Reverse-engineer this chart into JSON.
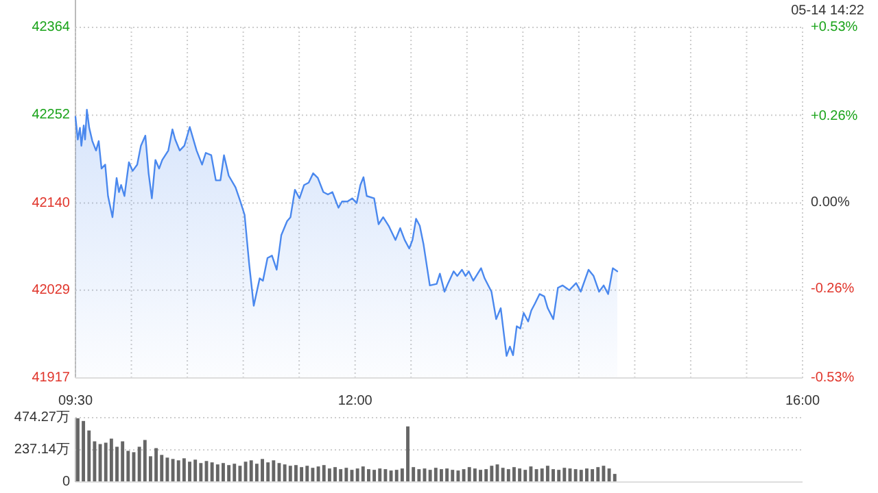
{
  "chart_data": [
    {
      "type": "area",
      "annotations": [
        "05-14 14:22"
      ],
      "grid": true,
      "x": [
        9.5,
        9.521,
        9.54,
        9.553,
        9.574,
        9.586,
        9.602,
        9.623,
        9.651,
        9.684,
        9.708,
        9.733,
        9.766,
        9.791,
        9.831,
        9.868,
        9.889,
        9.908,
        9.938,
        9.978,
        10.011,
        10.052,
        10.085,
        10.125,
        10.154,
        10.183,
        10.215,
        10.248,
        10.276,
        10.33,
        10.367,
        10.392,
        10.432,
        10.473,
        10.522,
        10.583,
        10.632,
        10.665,
        10.714,
        10.755,
        10.796,
        10.828,
        10.87,
        10.931,
        10.972,
        11.012,
        11.054,
        11.094,
        11.147,
        11.176,
        11.217,
        11.257,
        11.299,
        11.34,
        11.392,
        11.422,
        11.462,
        11.503,
        11.544,
        11.585,
        11.625,
        11.667,
        11.716,
        11.757,
        11.797,
        11.851,
        11.883,
        11.932,
        11.974,
        12.014,
        12.047,
        12.075,
        12.104,
        12.17,
        12.21,
        12.251,
        12.3,
        12.361,
        12.403,
        12.443,
        12.484,
        12.513,
        12.545,
        12.578,
        12.611,
        12.668,
        12.729,
        12.758,
        12.799,
        12.832,
        12.881,
        12.913,
        12.955,
        12.987,
        13.016,
        13.057,
        13.126,
        13.158,
        13.219,
        13.261,
        13.302,
        13.354,
        13.384,
        13.412,
        13.445,
        13.477,
        13.507,
        13.547,
        13.575,
        13.608,
        13.649,
        13.691,
        13.722,
        13.772,
        13.813,
        13.854,
        13.915,
        13.976,
        14.017,
        14.087,
        14.132,
        14.181,
        14.222,
        14.262,
        14.304,
        14.344
      ],
      "series": [
        {
          "color": "#4a88ee",
          "values": [
            42250,
            42221,
            42236,
            42213,
            42239,
            42221,
            42259,
            42236,
            42219,
            42207,
            42219,
            42184,
            42189,
            42149,
            42122,
            42172,
            42154,
            42163,
            42149,
            42192,
            42181,
            42189,
            42213,
            42226,
            42178,
            42146,
            42195,
            42184,
            42195,
            42207,
            42234,
            42221,
            42207,
            42213,
            42237,
            42207,
            42189,
            42204,
            42201,
            42169,
            42169,
            42201,
            42175,
            42160,
            42143,
            42125,
            42061,
            42009,
            42044,
            42041,
            42070,
            42073,
            42055,
            42099,
            42117,
            42122,
            42157,
            42146,
            42163,
            42166,
            42178,
            42172,
            42154,
            42151,
            42154,
            42134,
            42142,
            42142,
            42146,
            42140,
            42163,
            42173,
            42149,
            42146,
            42113,
            42122,
            42111,
            42093,
            42108,
            42093,
            42082,
            42093,
            42120,
            42111,
            42088,
            42035,
            42037,
            42050,
            42027,
            42038,
            42053,
            42047,
            42055,
            42047,
            42053,
            42041,
            42057,
            42044,
            42027,
            41992,
            42006,
            41945,
            41957,
            41946,
            41983,
            41980,
            42000,
            41989,
            42003,
            42012,
            42024,
            42021,
            42006,
            41992,
            42032,
            42035,
            42029,
            42038,
            42027,
            42055,
            42047,
            42027,
            42035,
            42024,
            42057,
            42053
          ]
        }
      ],
      "xlim": [
        9.5,
        16
      ],
      "xticks": [
        {
          "value": 9.5,
          "label": "09:30"
        },
        {
          "value": 10,
          "label": null
        },
        {
          "value": 10.5,
          "label": null
        },
        {
          "value": 11,
          "label": null
        },
        {
          "value": 11.5,
          "label": null
        },
        {
          "value": 12,
          "label": "12:00"
        },
        {
          "value": 12.5,
          "label": null
        },
        {
          "value": 13,
          "label": null
        },
        {
          "value": 13.5,
          "label": null
        },
        {
          "value": 14,
          "label": null
        },
        {
          "value": 14.5,
          "label": null
        },
        {
          "value": 15,
          "label": null
        },
        {
          "value": 15.5,
          "label": null
        },
        {
          "value": 16,
          "label": "16:00"
        }
      ],
      "ylim": [
        41917,
        42364
      ],
      "yticks": [
        41917,
        42029,
        42140,
        42252,
        42364
      ],
      "y2lim": [
        -0.53,
        0.53
      ],
      "y2ticks": [
        {
          "value": -0.53,
          "label": "-0.53%"
        },
        {
          "value": -0.26,
          "label": "-0.26%"
        },
        {
          "value": 0,
          "label": "0.00%"
        },
        {
          "value": 0.26,
          "label": "+0.26%"
        },
        {
          "value": 0.53,
          "label": "+0.53%"
        }
      ]
    },
    {
      "type": "bar",
      "color": "#666666",
      "grid": "y",
      "tick_labels": "y",
      "x": [
        9.5,
        9.55,
        9.6,
        9.65,
        9.7,
        9.75,
        9.8,
        9.85,
        9.9,
        9.95,
        10.0,
        10.05,
        10.1,
        10.15,
        10.2,
        10.25,
        10.3,
        10.35,
        10.4,
        10.45,
        10.5,
        10.55,
        10.6,
        10.65,
        10.7,
        10.75,
        10.8,
        10.85,
        10.9,
        10.95,
        11.0,
        11.05,
        11.1,
        11.15,
        11.2,
        11.25,
        11.3,
        11.35,
        11.4,
        11.45,
        11.5,
        11.55,
        11.6,
        11.65,
        11.7,
        11.75,
        11.8,
        11.85,
        11.9,
        11.95,
        12.0,
        12.05,
        12.1,
        12.15,
        12.2,
        12.25,
        12.3,
        12.35,
        12.4,
        12.45,
        12.5,
        12.55,
        12.6,
        12.65,
        12.7,
        12.75,
        12.8,
        12.85,
        12.9,
        12.95,
        13.0,
        13.05,
        13.1,
        13.15,
        13.2,
        13.25,
        13.3,
        13.35,
        13.4,
        13.45,
        13.5,
        13.55,
        13.6,
        13.65,
        13.7,
        13.75,
        13.8,
        13.85,
        13.9,
        13.95,
        14.0,
        14.05,
        14.1,
        14.15,
        14.2,
        14.25,
        14.3
      ],
      "values": [
        470,
        450,
        380,
        300,
        280,
        290,
        320,
        260,
        300,
        230,
        220,
        260,
        310,
        190,
        250,
        200,
        180,
        170,
        160,
        175,
        150,
        165,
        140,
        155,
        145,
        130,
        140,
        125,
        135,
        120,
        150,
        160,
        135,
        170,
        145,
        160,
        140,
        130,
        120,
        125,
        110,
        120,
        105,
        115,
        125,
        100,
        110,
        95,
        105,
        90,
        100,
        115,
        95,
        90,
        100,
        95,
        85,
        90,
        100,
        410,
        110,
        95,
        100,
        90,
        105,
        95,
        100,
        90,
        85,
        95,
        110,
        100,
        90,
        95,
        120,
        130,
        105,
        95,
        110,
        100,
        90,
        115,
        95,
        100,
        120,
        95,
        90,
        105,
        100,
        95,
        90,
        100,
        95,
        110,
        120,
        100,
        60
      ],
      "xlim": [
        9.5,
        16
      ],
      "ylim": [
        0,
        474.27
      ],
      "yticks": [
        0,
        {
          "value": 237.14,
          "label": "237.14万"
        },
        {
          "value": 474.27,
          "label": "474.27万"
        }
      ]
    }
  ]
}
